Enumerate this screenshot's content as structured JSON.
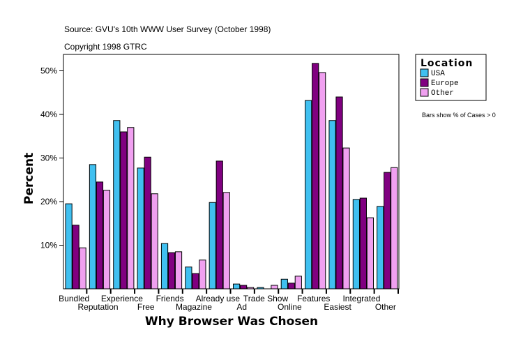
{
  "chart_data": {
    "type": "bar",
    "source": "Source: GVU's 10th WWW User Survey (October 1998)",
    "copyright": "Copyright 1998 GTRC",
    "xlabel": "Why Browser Was Chosen",
    "ylabel": "Percent",
    "ylim": [
      0,
      53.7
    ],
    "yticks": [
      "10%",
      "20%",
      "30%",
      "40%",
      "50%"
    ],
    "ytick_values": [
      10,
      20,
      30,
      40,
      50
    ],
    "categories": [
      "Bundled",
      "Reputation",
      "Experience",
      "Free",
      "Friends",
      "Magazine",
      "Already use",
      "Ad",
      "Trade Show",
      "Online",
      "Features",
      "Easiest",
      "Integrated",
      "Other"
    ],
    "series": [
      {
        "name": "USA",
        "color": "#40c0f0",
        "values": [
          19.5,
          28.5,
          38.6,
          27.7,
          10.4,
          5.0,
          19.8,
          1.1,
          0.3,
          2.2,
          43.2,
          38.6,
          20.5,
          18.9
        ]
      },
      {
        "name": "Europe",
        "color": "#800080",
        "values": [
          14.6,
          24.5,
          36.0,
          30.2,
          8.3,
          3.5,
          29.3,
          0.8,
          0.0,
          1.3,
          51.7,
          44.0,
          20.8,
          26.7
        ]
      },
      {
        "name": "Other",
        "color": "#f0a0f0",
        "values": [
          9.4,
          22.6,
          37.0,
          21.8,
          8.5,
          6.6,
          22.1,
          0.3,
          0.8,
          2.9,
          49.6,
          32.3,
          16.3,
          27.8
        ]
      }
    ],
    "legend": {
      "title": "Location",
      "placement": "right"
    },
    "note": "Bars show % of Cases > 0",
    "grid": false
  }
}
